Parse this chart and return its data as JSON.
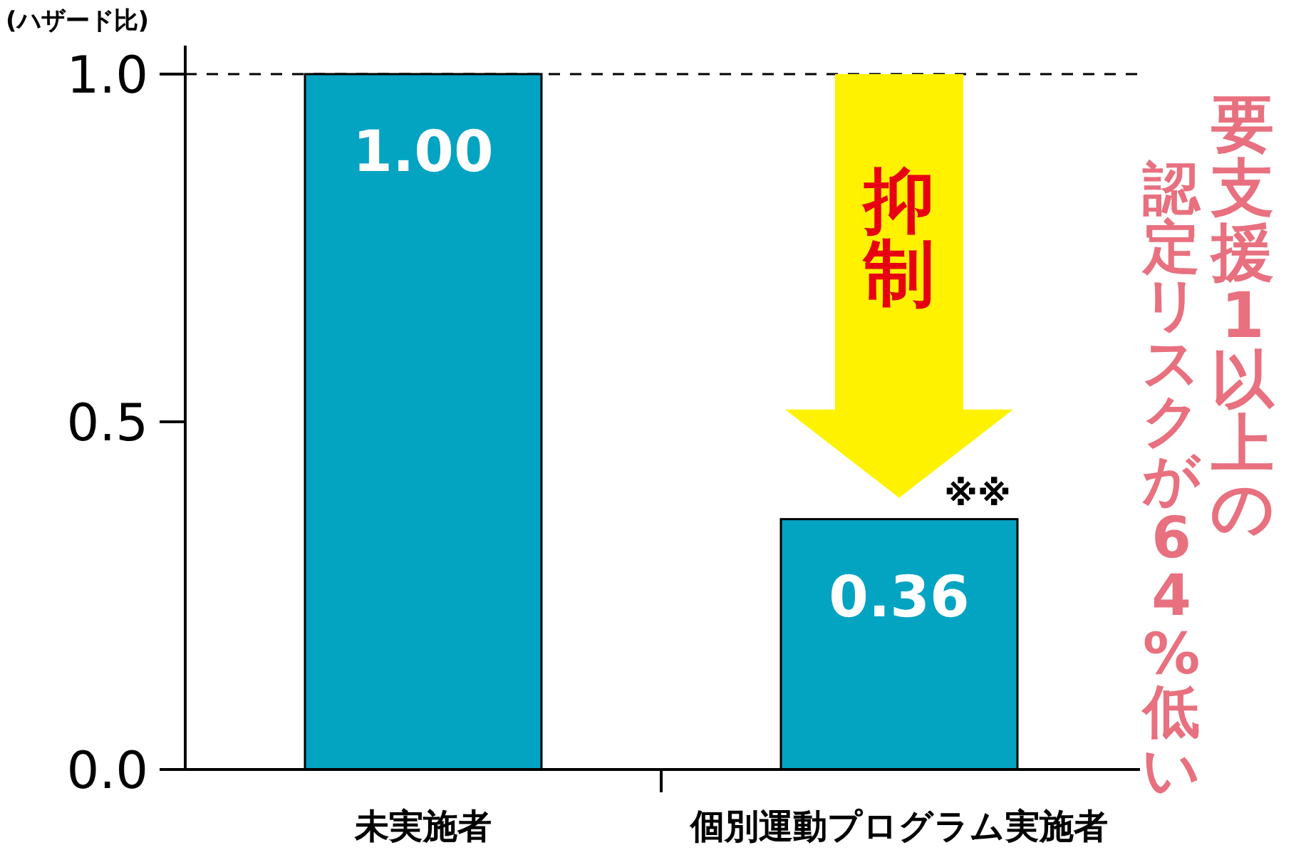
{
  "chart_data": {
    "type": "bar",
    "ylabel": "(ハザード比)",
    "categories": [
      "未実施者",
      "個別運動プログラム実施者"
    ],
    "values": [
      1.0,
      0.36
    ],
    "color": "#03a3c2",
    "value_labels": [
      "1.00",
      "0.36"
    ],
    "ylim": [
      0,
      1
    ],
    "yticks": [
      {
        "value": 0,
        "label": "0.0"
      },
      {
        "value": 0.5,
        "label": "0.5"
      },
      {
        "value": 1,
        "label": "1.0"
      }
    ],
    "ref_lines": [
      {
        "axis": "y",
        "value": 1,
        "line_style": "dashed",
        "color": "#000000"
      }
    ],
    "annotations": [
      "抑制",
      {
        "text": "※※",
        "x": "個別運動プログラム実施者",
        "y": 0.36
      },
      "要支援1以上の",
      "認定リスクが64%低い"
    ]
  }
}
